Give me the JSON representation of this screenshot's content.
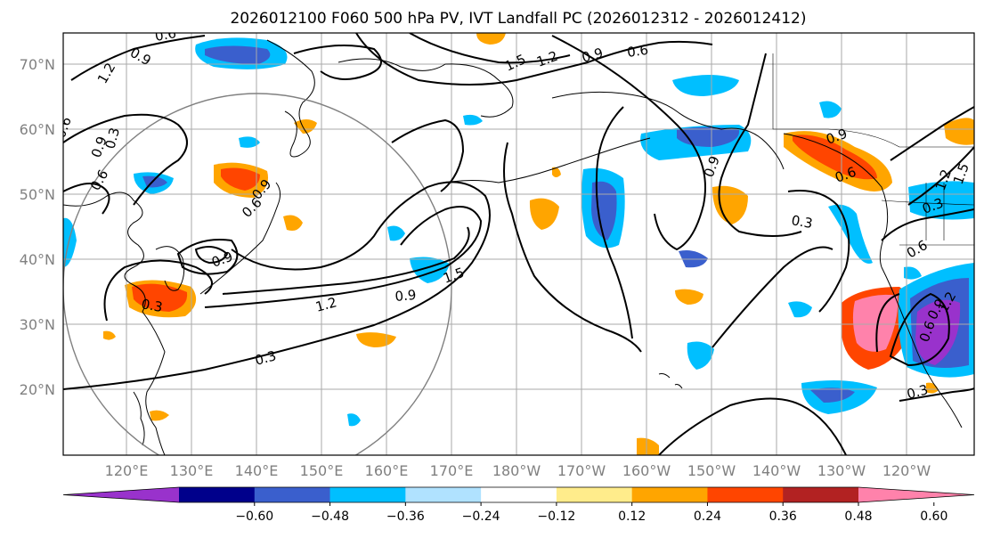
{
  "title": "2026012100 F060 500 hPa PV, IVT Landfall PC (2026012312 - 2026012412)",
  "lat_labels": [
    "70°N",
    "60°N",
    "50°N",
    "40°N",
    "30°N",
    "20°N"
  ],
  "lon_labels": [
    "120°E",
    "130°E",
    "140°E",
    "150°E",
    "160°E",
    "170°E",
    "180°W",
    "170°W",
    "160°W",
    "150°W",
    "140°W",
    "130°W",
    "120°W"
  ],
  "colorbar": {
    "ticks": [
      "−0.60",
      "−0.48",
      "−0.36",
      "−0.24",
      "−0.12",
      "0.12",
      "0.24",
      "0.36",
      "0.48",
      "0.60"
    ],
    "colors": [
      "#9932cc",
      "#00008b",
      "#3a5fcd",
      "#00bfff",
      "#b0e2ff",
      "#ffffff",
      "#ffec8b",
      "#ffa500",
      "#ff4500",
      "#b22222",
      "#ff82ab"
    ]
  },
  "contour_labels": [
    "0.6",
    "0.9",
    "1.2",
    "0.9",
    "0.6",
    "1.5",
    "1.2",
    "0.9",
    "0.6",
    "0.3",
    "0.6",
    "0.3",
    "0.9",
    "0.6",
    "0.9",
    "0.9",
    "1.2",
    "0.3",
    "0.9",
    "1.2",
    "1.5",
    "0.6",
    "0.9",
    "1.2",
    "1.5",
    "0.3",
    "0.6",
    "0.3",
    "0.9",
    "0.6",
    "0.3"
  ]
}
